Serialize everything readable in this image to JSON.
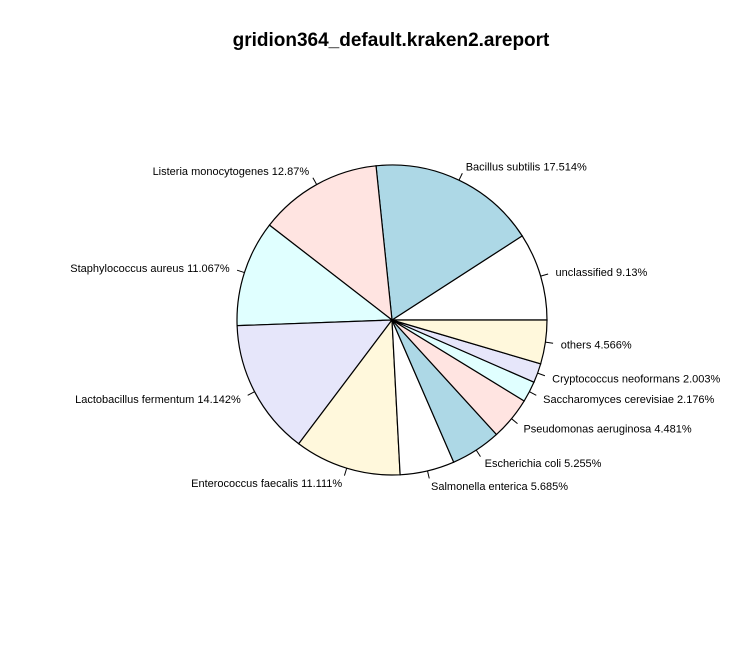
{
  "chart_data": {
    "type": "pie",
    "title": "gridion364_default.kraken2.areport",
    "start_angle_deg": 0,
    "direction": "counterclockwise",
    "slice_labels": [
      "unclassified 9.13%",
      "Bacillus subtilis 17.514%",
      "Listeria monocytogenes 12.87%",
      "Staphylococcus aureus 11.067%",
      "Lactobacillus fermentum 14.142%",
      "Enterococcus faecalis 11.111%",
      "Salmonella enterica 5.685%",
      "Escherichia coli 5.255%",
      "Pseudomonas aeruginosa 4.481%",
      "Saccharomyces cerevisiae 2.176%",
      "Cryptococcus neoformans 2.003%",
      "others 4.566%"
    ],
    "values": [
      9.13,
      17.514,
      12.87,
      11.067,
      14.142,
      11.111,
      5.685,
      5.255,
      4.481,
      2.176,
      2.003,
      4.566
    ],
    "colors": [
      "#ffffff",
      "#add8e6",
      "#ffe4e1",
      "#e0ffff",
      "#e6e6fa",
      "#fff8dc",
      "#ffffff",
      "#add8e6",
      "#ffe4e1",
      "#e0ffff",
      "#e6e6fa",
      "#fff8dc"
    ],
    "stroke_color": "#000000"
  }
}
